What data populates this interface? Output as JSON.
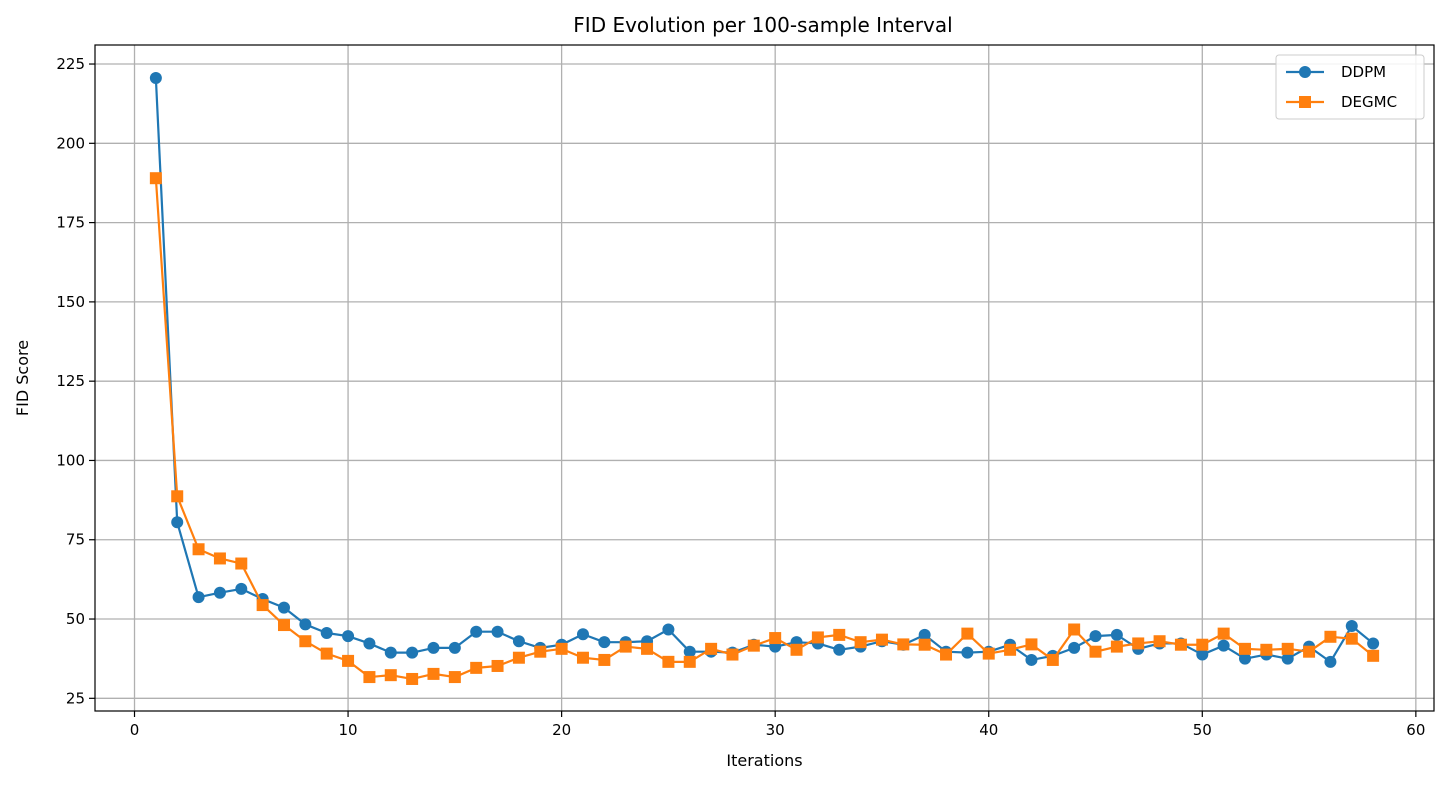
{
  "chart_data": {
    "type": "line",
    "title": "FID Evolution per 100-sample Interval",
    "xlabel": "Iterations",
    "ylabel": "FID Score",
    "xlim": [
      -1.85,
      60.85
    ],
    "ylim": [
      21,
      231
    ],
    "xticks": [
      0,
      10,
      20,
      30,
      40,
      50,
      60
    ],
    "yticks": [
      25,
      50,
      75,
      100,
      125,
      150,
      175,
      200,
      225
    ],
    "grid": true,
    "legend_position": "top-right",
    "x": [
      1,
      2,
      3,
      4,
      5,
      6,
      7,
      8,
      9,
      10,
      11,
      12,
      13,
      14,
      15,
      16,
      17,
      18,
      19,
      20,
      21,
      22,
      23,
      24,
      25,
      26,
      27,
      28,
      29,
      30,
      31,
      32,
      33,
      34,
      35,
      36,
      37,
      38,
      39,
      40,
      41,
      42,
      43,
      44,
      45,
      46,
      47,
      48,
      49,
      50,
      51,
      52,
      53,
      54,
      55,
      56,
      57,
      58
    ],
    "series": [
      {
        "name": "DDPM",
        "color": "#1f77b4",
        "marker": "circle",
        "values": [
          220.6,
          80.5,
          56.9,
          58.3,
          59.5,
          56.3,
          53.6,
          48.3,
          45.6,
          44.6,
          42.3,
          39.4,
          39.4,
          40.9,
          40.9,
          46.0,
          46.0,
          43.0,
          40.9,
          41.9,
          45.2,
          42.7,
          42.7,
          43.0,
          46.7,
          39.7,
          39.7,
          39.4,
          41.9,
          41.3,
          42.7,
          42.3,
          40.3,
          41.3,
          43.0,
          41.9,
          45.0,
          39.7,
          39.4,
          39.7,
          41.9,
          37.1,
          38.4,
          40.9,
          44.6,
          45.0,
          40.6,
          42.3,
          42.3,
          38.8,
          41.6,
          37.5,
          38.8,
          37.5,
          41.3,
          36.5,
          47.8,
          42.3
        ]
      },
      {
        "name": "DEGMC",
        "color": "#ff7f0e",
        "marker": "square",
        "values": [
          189.0,
          88.7,
          72.0,
          69.1,
          67.5,
          54.4,
          48.1,
          43.0,
          39.1,
          36.8,
          31.7,
          32.3,
          31.1,
          32.7,
          31.7,
          34.6,
          35.2,
          37.8,
          39.7,
          40.6,
          37.8,
          37.1,
          41.3,
          40.6,
          36.5,
          36.5,
          40.6,
          38.8,
          41.6,
          44.0,
          40.3,
          44.2,
          45.0,
          42.7,
          43.5,
          42.0,
          41.9,
          38.8,
          45.4,
          39.1,
          40.3,
          42.0,
          37.1,
          46.7,
          39.7,
          41.3,
          42.3,
          43.0,
          41.9,
          41.9,
          45.4,
          40.6,
          40.3,
          40.6,
          39.7,
          44.4,
          43.8,
          38.4
        ]
      }
    ]
  }
}
